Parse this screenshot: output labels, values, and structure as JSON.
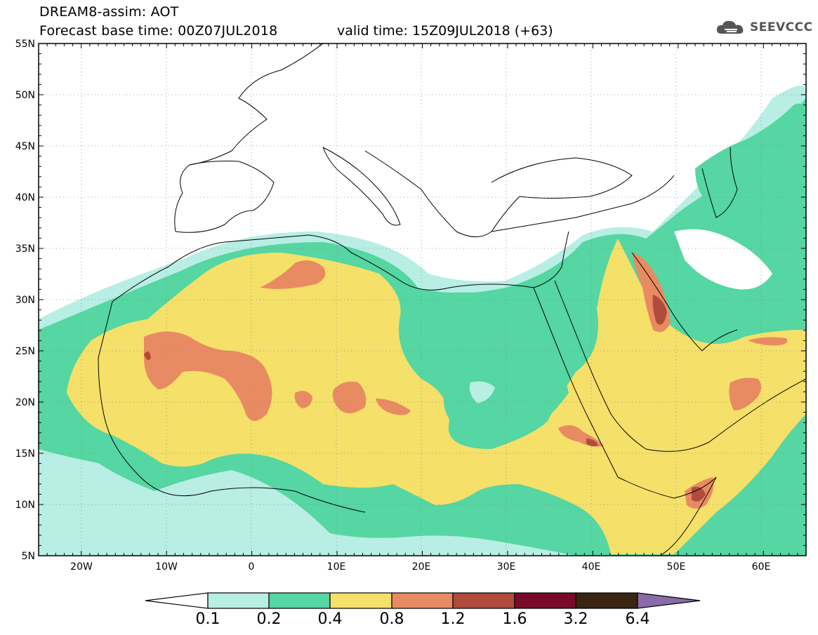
{
  "header": {
    "title": "DREAM8-assim: AOT",
    "base_time": "Forecast base time: 00Z07JUL2018",
    "valid_time": "valid time: 15Z09JUL2018 (+63)"
  },
  "logo": {
    "text": "SEEVCCC",
    "icon": "cloud-icon"
  },
  "axes": {
    "lat_labels": [
      "55N",
      "50N",
      "45N",
      "40N",
      "35N",
      "30N",
      "25N",
      "20N",
      "15N",
      "10N",
      "5N"
    ],
    "lon_labels": [
      "20W",
      "10W",
      "0",
      "10E",
      "20E",
      "30E",
      "40E",
      "50E",
      "60E"
    ],
    "lat_range": [
      5,
      55
    ],
    "lon_range": [
      -25,
      65
    ]
  },
  "legend": {
    "bounds": [
      "0.1",
      "0.2",
      "0.4",
      "0.8",
      "1.2",
      "1.6",
      "3.2",
      "6.4"
    ],
    "colors": [
      "#ffffff",
      "#b8eee4",
      "#55d6a2",
      "#f5e06a",
      "#e98b62",
      "#b04c3c",
      "#7a0a2a",
      "#3a2412",
      "#8a6aa8"
    ]
  },
  "map": {
    "field": "Aerosol optical thickness",
    "palette": {
      "c01": "#b8eee4",
      "c02": "#55d6a2",
      "c04": "#f5e06a",
      "c08": "#e98b62",
      "c12": "#b04c3c",
      "c16": "#7a0a2a",
      "c32": "#3a2412"
    }
  }
}
